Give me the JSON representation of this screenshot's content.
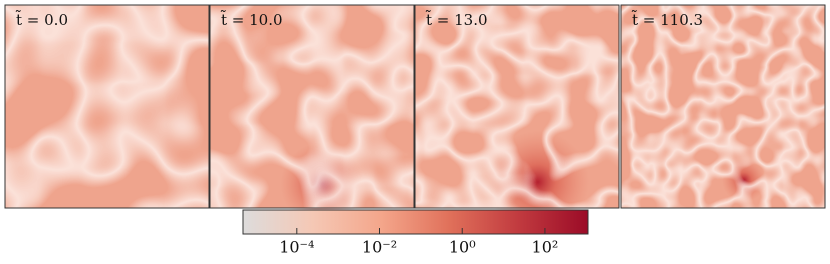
{
  "chart_data": {
    "type": "colormap-panels",
    "panels": [
      {
        "label": "t̃ = 0.0"
      },
      {
        "label": "t̃ = 10.0"
      },
      {
        "label": "t̃ = 13.0"
      },
      {
        "label": "t̃ = 110.3"
      }
    ],
    "colorbar": {
      "log": true,
      "xlim": [
        5e-06,
        1100
      ],
      "xticks": [
        {
          "value": 0.0001,
          "label": "10⁻⁴"
        },
        {
          "value": 0.01,
          "label": "10⁻²"
        },
        {
          "value": 1,
          "label": "10⁰"
        },
        {
          "value": 100,
          "label": "10²"
        }
      ],
      "colormap": [
        "#dddcdc",
        "#f5c8b5",
        "#f4a68b",
        "#e0705a",
        "#c13a3f",
        "#9b0b27"
      ]
    }
  }
}
